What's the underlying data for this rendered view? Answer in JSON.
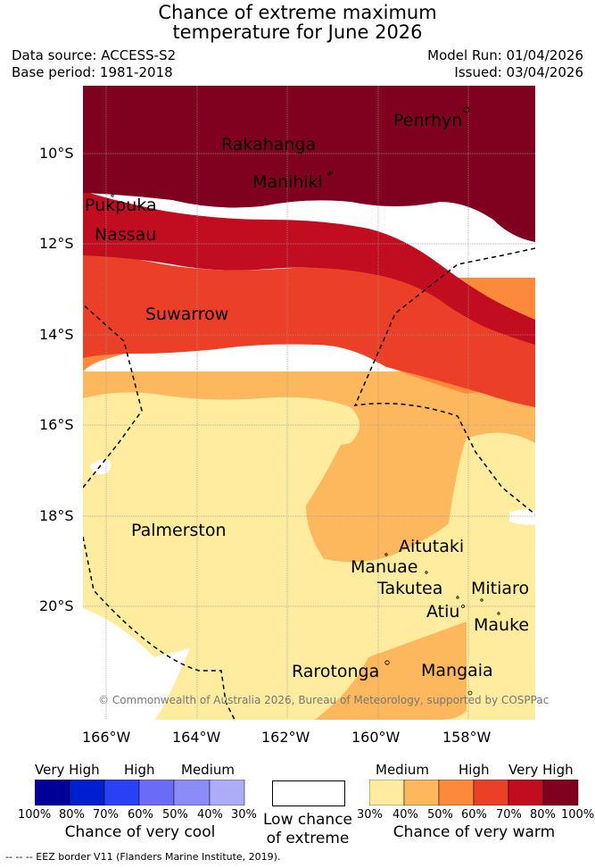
{
  "header": {
    "title_line1": "Chance of extreme maximum",
    "title_line2": "temperature for June 2026",
    "data_source": "Data source: ACCESS-S2",
    "base_period": "Base period: 1981-2018",
    "model_run": "Model Run: 01/04/2026",
    "issued": "Issued: 03/04/2026"
  },
  "map": {
    "lat_ticks": [
      "10°S",
      "12°S",
      "14°S",
      "16°S",
      "18°S",
      "20°S"
    ],
    "lon_ticks": [
      "166°W",
      "164°W",
      "162°W",
      "160°W",
      "158°W"
    ],
    "islands": [
      "Penrhyn",
      "Rakahanga",
      "Manihiki",
      "Pukpuka",
      "Nassau",
      "Suwarrow",
      "Palmerston",
      "Aitutaki",
      "Manuae",
      "Takutea",
      "Mitiaro",
      "Atiu",
      "Mauke",
      "Rarotonga",
      "Mangaia"
    ],
    "copyright": "© Commonwealth of Australia 2026, Bureau of Meteorology, supported by COSPPac",
    "colors": {
      "warm_30": "#ffec9e",
      "warm_40": "#fdb75c",
      "warm_50": "#fc8a3a",
      "warm_60": "#ec3f27",
      "warm_70": "#c20d20",
      "warm_80": "#800020",
      "cool_80": "#000098",
      "cool_70": "#0020d0",
      "cool_60": "#2a40f5",
      "cool_50": "#6a6cf8",
      "cool_40": "#8c8cf8",
      "cool_30": "#acacf8"
    }
  },
  "legend": {
    "cool": {
      "headers": [
        "Very High",
        "High",
        "Medium"
      ],
      "percents": [
        "100%",
        "80%",
        "70%",
        "60%",
        "50%",
        "40%",
        "30%"
      ],
      "caption": "Chance of very cool"
    },
    "neutral": {
      "caption_line1": "Low chance",
      "caption_line2": "of extreme"
    },
    "warm": {
      "headers": [
        "Medium",
        "High",
        "Very High"
      ],
      "percents": [
        "30%",
        "40%",
        "50%",
        "60%",
        "70%",
        "80%",
        "100%"
      ],
      "caption": "Chance of very warm"
    }
  },
  "footnote": "--  --  -- EEZ border V11 (Flanders Marine Institute, 2019)."
}
